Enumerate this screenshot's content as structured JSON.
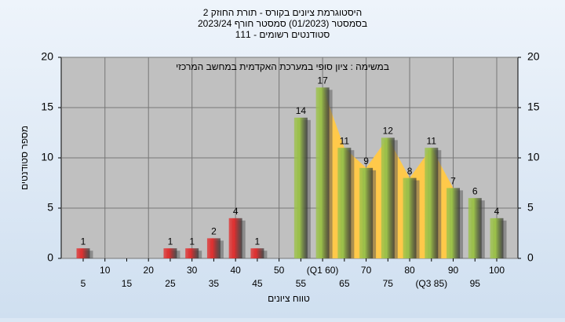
{
  "chart_data": {
    "type": "bar",
    "title": [
      "היסטוגרמת ציונים בקורס - תורת החוזק 2",
      "בסמסטר  (01/2023)  סמסטר חורף 2023/24",
      "סטודנטים רשומים - 111"
    ],
    "subtitle": "במשימה : ציון סופי במערכת האקדמית במחשב המרכזי",
    "x_label": "טווח ציונים",
    "y_label": "מספר סטודנטים",
    "categories": [
      "5",
      "10",
      "15",
      "20",
      "25",
      "30",
      "35",
      "40",
      "45",
      "50",
      "55",
      "(Q1 60)",
      "65",
      "70",
      "75",
      "80",
      "(Q3 85)",
      "90",
      "95",
      "100"
    ],
    "values": [
      1,
      0,
      0,
      0,
      1,
      1,
      2,
      4,
      1,
      0,
      14,
      17,
      11,
      9,
      12,
      8,
      11,
      7,
      6,
      4
    ],
    "bar_colors": [
      "#e03030",
      "#e03030",
      "#e03030",
      "#e03030",
      "#e03030",
      "#e03030",
      "#e03030",
      "#e03030",
      "#e03030",
      "#e03030",
      "#9cc24a",
      "#9cc24a",
      "#9cc24a",
      "#9cc24a",
      "#9cc24a",
      "#9cc24a",
      "#9cc24a",
      "#9cc24a",
      "#9cc24a",
      "#9cc24a"
    ],
    "area_color": "#ffc94a",
    "ylim": [
      0,
      20
    ],
    "yticks": [
      0,
      5,
      10,
      15,
      20
    ],
    "y2lim": [
      0,
      20
    ],
    "y2ticks": [
      0,
      5,
      10,
      15,
      20
    ],
    "grid": true
  }
}
